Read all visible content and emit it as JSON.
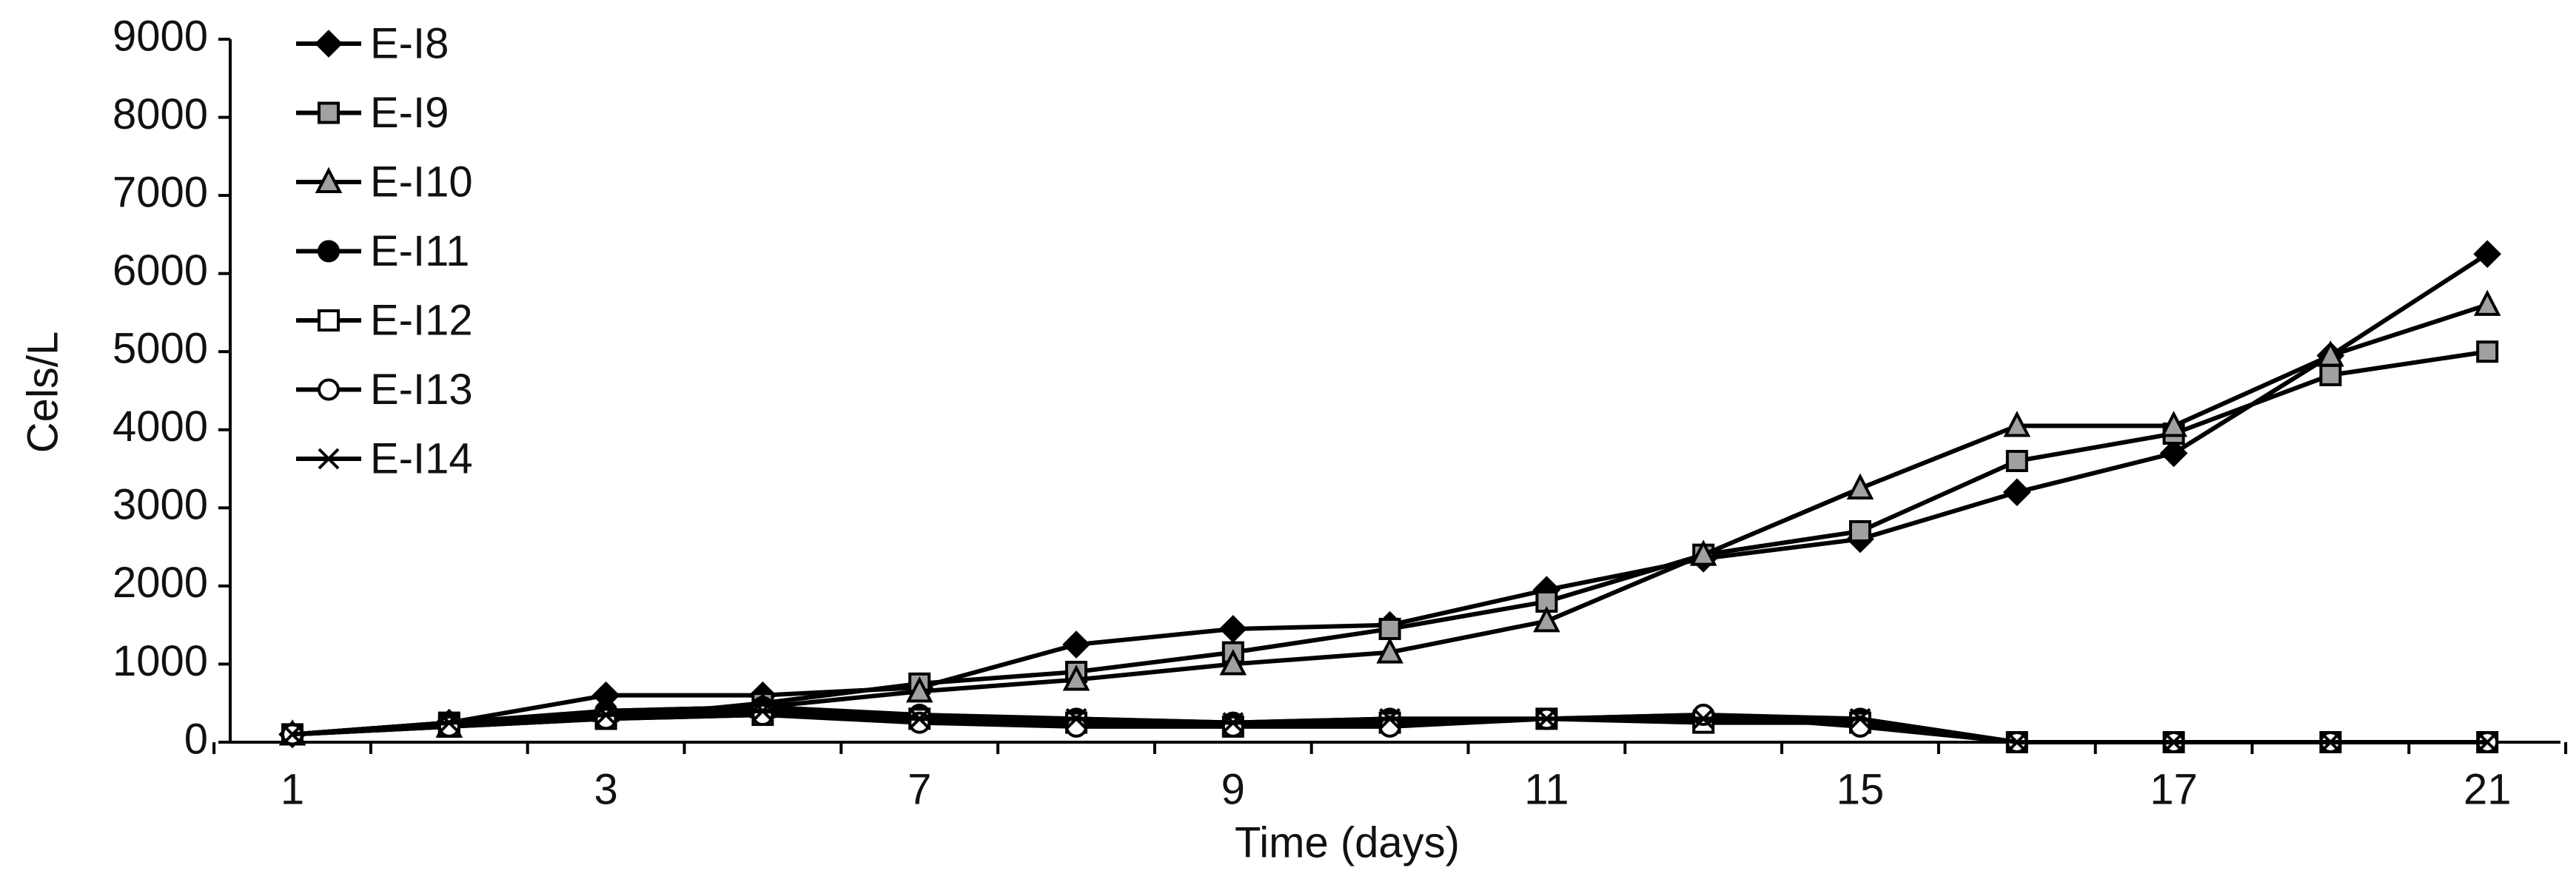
{
  "chart_data": {
    "type": "line",
    "x_label": "Time (days)",
    "y_label": "Cels/L",
    "categories": [
      "1",
      null,
      "3",
      null,
      "7",
      null,
      "9",
      null,
      "11",
      null,
      "15",
      null,
      "17",
      null,
      "21"
    ],
    "ylim": [
      0,
      9000
    ],
    "yticks": [
      0,
      1000,
      2000,
      3000,
      4000,
      5000,
      6000,
      7000,
      8000,
      9000
    ],
    "legend": "upper left",
    "series": [
      {
        "name": "E-I8",
        "color": "#000000",
        "marker": "diamond",
        "marker_fill": "#000000",
        "values": [
          100,
          250,
          600,
          600,
          700,
          1250,
          1450,
          1500,
          1950,
          2350,
          2600,
          3200,
          3700,
          4950,
          6250
        ]
      },
      {
        "name": "E-I9",
        "color": "#000000",
        "marker": "square",
        "marker_fill": "#a0a0a0",
        "values": [
          100,
          250,
          300,
          500,
          750,
          900,
          1150,
          1450,
          1800,
          2400,
          2700,
          3600,
          3950,
          4700,
          5000
        ]
      },
      {
        "name": "E-I10",
        "color": "#000000",
        "marker": "triangle",
        "marker_fill": "#a0a0a0",
        "values": [
          100,
          200,
          400,
          450,
          650,
          800,
          1000,
          1150,
          1550,
          2400,
          3250,
          4050,
          4050,
          4950,
          5600
        ]
      },
      {
        "name": "E-I11",
        "color": "#000000",
        "marker": "circle",
        "marker_fill": "#000000",
        "values": [
          100,
          250,
          400,
          450,
          350,
          300,
          250,
          300,
          300,
          350,
          300,
          0,
          0,
          0,
          0
        ]
      },
      {
        "name": "E-I12",
        "color": "#000000",
        "marker": "square",
        "marker_fill": "#ffffff",
        "values": [
          100,
          200,
          300,
          350,
          300,
          250,
          200,
          250,
          300,
          250,
          250,
          0,
          0,
          0,
          0
        ]
      },
      {
        "name": "E-I13",
        "color": "#000000",
        "marker": "circle",
        "marker_fill": "#ffffff",
        "values": [
          100,
          200,
          300,
          350,
          250,
          200,
          200,
          200,
          300,
          350,
          200,
          0,
          0,
          0,
          0
        ]
      },
      {
        "name": "E-I14",
        "color": "#000000",
        "marker": "x",
        "marker_fill": "#000000",
        "values": [
          100,
          250,
          350,
          400,
          300,
          300,
          250,
          300,
          300,
          300,
          300,
          0,
          0,
          0,
          0
        ]
      }
    ]
  }
}
